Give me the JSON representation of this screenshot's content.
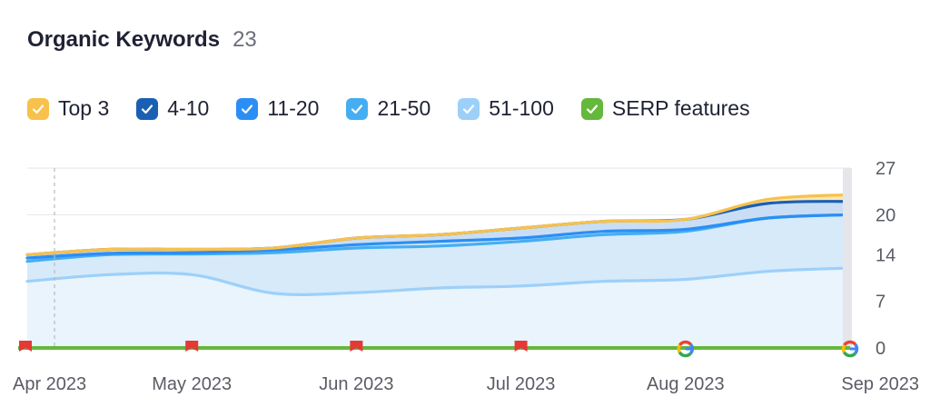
{
  "header": {
    "title": "Organic Keywords",
    "count": "23"
  },
  "legend": [
    {
      "label": "Top 3",
      "color": "#f8c14c"
    },
    {
      "label": "4-10",
      "color": "#1b5fb5"
    },
    {
      "label": "11-20",
      "color": "#2b8ef5"
    },
    {
      "label": "21-50",
      "color": "#45aef2"
    },
    {
      "label": "51-100",
      "color": "#9dd0f9"
    },
    {
      "label": "SERP features",
      "color": "#64b83c"
    }
  ],
  "chart_data": {
    "type": "area",
    "x_labels": [
      "Apr 2023",
      "May 2023",
      "Jun 2023",
      "Jul 2023",
      "Aug 2023",
      "Sep 2023"
    ],
    "y_ticks": [
      0,
      7,
      14,
      20,
      27
    ],
    "ylim": [
      0,
      27
    ],
    "x": [
      0,
      0.5,
      1,
      1.5,
      2,
      2.5,
      3,
      3.5,
      4,
      4.5,
      5
    ],
    "series": [
      {
        "name": "Top 3",
        "color": "#f8c14c",
        "values": [
          14,
          14.8,
          14.8,
          15,
          16.5,
          17,
          18,
          19,
          19.3,
          22.3,
          23
        ]
      },
      {
        "name": "4-10",
        "color": "#1b5fb5",
        "values": [
          14,
          14.8,
          14.8,
          15,
          16.5,
          17,
          18,
          19,
          19.3,
          21.7,
          22
        ]
      },
      {
        "name": "11-20",
        "color": "#2b8ef5",
        "values": [
          13.5,
          14.2,
          14.3,
          14.7,
          15.5,
          16,
          16.5,
          17.5,
          17.8,
          19.5,
          20
        ]
      },
      {
        "name": "21-50",
        "color": "#45aef2",
        "values": [
          13,
          14,
          14.1,
          14.3,
          15,
          15.3,
          16,
          17,
          17.5,
          19.5,
          20
        ]
      },
      {
        "name": "51-100",
        "color": "#9dd0f9",
        "values": [
          10,
          11,
          11,
          8.2,
          8.3,
          9,
          9.3,
          10,
          10.3,
          11.5,
          12
        ]
      }
    ],
    "grid": true,
    "x_ticks_at": [
      0,
      1,
      2,
      3,
      4,
      5
    ],
    "events": [
      {
        "x": 0,
        "type": "flag"
      },
      {
        "x": 1,
        "type": "flag"
      },
      {
        "x": 2,
        "type": "flag"
      },
      {
        "x": 3,
        "type": "flag"
      },
      {
        "x": 4,
        "type": "google"
      },
      {
        "x": 5,
        "type": "google"
      }
    ],
    "serp_color": "#64b83c",
    "flag_color": "#e53935"
  }
}
